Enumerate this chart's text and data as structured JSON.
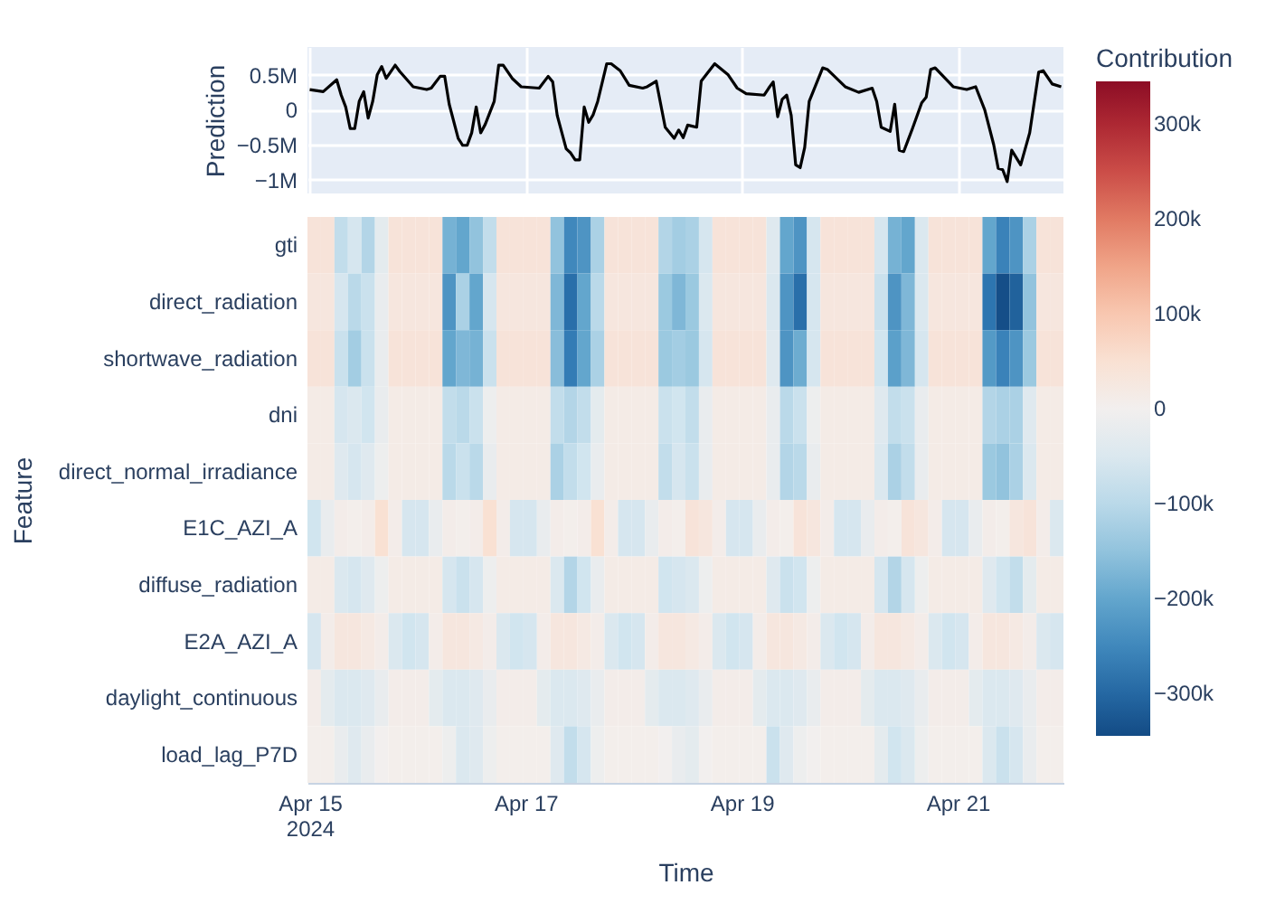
{
  "chart_data": [
    {
      "type": "line",
      "ylabel": "Prediction",
      "tick_labels": "y",
      "grid": true,
      "xlim": [
        "2024-04-14T23:30",
        "2024-04-21T23:30"
      ],
      "xticks": [
        {
          "value": "2024-04-15",
          "label": null
        },
        {
          "value": "2024-04-17",
          "label": null
        },
        {
          "value": "2024-04-19",
          "label": null
        },
        {
          "value": "2024-04-21",
          "label": null
        }
      ],
      "ylim": [
        -1200000,
        900000
      ],
      "yticks": [
        {
          "value": 500000,
          "label": "0.5M"
        },
        {
          "value": 0,
          "label": "0"
        },
        {
          "value": -500000,
          "label": "−0.5M"
        },
        {
          "value": -1000000,
          "label": "−1M"
        }
      ],
      "x": [
        "2024-04-15T00:00",
        "2024-04-15T03:00",
        "2024-04-15T06:00",
        "2024-04-15T07:00",
        "2024-04-15T08:00",
        "2024-04-15T09:00",
        "2024-04-15T10:00",
        "2024-04-15T11:00",
        "2024-04-15T12:00",
        "2024-04-15T13:00",
        "2024-04-15T14:00",
        "2024-04-15T15:00",
        "2024-04-15T16:00",
        "2024-04-15T17:00",
        "2024-04-15T19:00",
        "2024-04-15T20:00",
        "2024-04-15T23:00",
        "2024-04-16T02:00",
        "2024-04-16T03:00",
        "2024-04-16T05:00",
        "2024-04-16T06:00",
        "2024-04-16T07:00",
        "2024-04-16T09:00",
        "2024-04-16T10:00",
        "2024-04-16T11:00",
        "2024-04-16T12:00",
        "2024-04-16T13:00",
        "2024-04-16T14:00",
        "2024-04-16T15:00",
        "2024-04-16T17:00",
        "2024-04-16T18:00",
        "2024-04-16T19:00",
        "2024-04-16T21:00",
        "2024-04-16T23:00",
        "2024-04-17T03:00",
        "2024-04-17T05:00",
        "2024-04-17T06:00",
        "2024-04-17T07:00",
        "2024-04-17T09:00",
        "2024-04-17T10:00",
        "2024-04-17T11:00",
        "2024-04-17T12:00",
        "2024-04-17T13:00",
        "2024-04-17T14:00",
        "2024-04-17T15:00",
        "2024-04-17T16:00",
        "2024-04-17T18:00",
        "2024-04-17T19:00",
        "2024-04-17T21:00",
        "2024-04-17T23:00",
        "2024-04-18T02:00",
        "2024-04-18T03:00",
        "2024-04-18T05:00",
        "2024-04-18T07:00",
        "2024-04-18T09:00",
        "2024-04-18T10:00",
        "2024-04-18T11:00",
        "2024-04-18T12:00",
        "2024-04-18T14:00",
        "2024-04-18T15:00",
        "2024-04-18T18:00",
        "2024-04-18T21:00",
        "2024-04-18T23:00",
        "2024-04-19T01:00",
        "2024-04-19T05:00",
        "2024-04-19T06:00",
        "2024-04-19T07:00",
        "2024-04-19T08:00",
        "2024-04-19T09:00",
        "2024-04-19T10:00",
        "2024-04-19T11:00",
        "2024-04-19T12:00",
        "2024-04-19T13:00",
        "2024-04-19T14:00",
        "2024-04-19T15:00",
        "2024-04-19T18:00",
        "2024-04-19T19:00",
        "2024-04-19T23:00",
        "2024-04-20T02:00",
        "2024-04-20T05:00",
        "2024-04-20T06:00",
        "2024-04-20T07:00",
        "2024-04-20T09:00",
        "2024-04-20T10:00",
        "2024-04-20T11:00",
        "2024-04-20T12:00",
        "2024-04-20T13:00",
        "2024-04-20T14:00",
        "2024-04-20T16:00",
        "2024-04-20T17:00",
        "2024-04-20T18:00",
        "2024-04-20T19:00",
        "2024-04-20T23:00",
        "2024-04-21T02:00",
        "2024-04-21T04:00",
        "2024-04-21T06:00",
        "2024-04-21T08:00",
        "2024-04-21T09:00",
        "2024-04-21T10:00",
        "2024-04-21T11:00",
        "2024-04-21T12:00",
        "2024-04-21T14:00",
        "2024-04-21T16:00",
        "2024-04-21T18:00",
        "2024-04-21T19:00",
        "2024-04-21T21:00",
        "2024-04-21T23:00"
      ],
      "series": [
        {
          "color": "#000000",
          "values": [
            290000,
            260000,
            430000,
            210000,
            40000,
            -270000,
            -270000,
            120000,
            260000,
            -120000,
            120000,
            500000,
            620000,
            450000,
            640000,
            550000,
            330000,
            290000,
            310000,
            480000,
            480000,
            80000,
            -410000,
            -510000,
            -510000,
            -330000,
            40000,
            -330000,
            -210000,
            120000,
            640000,
            640000,
            450000,
            330000,
            310000,
            480000,
            400000,
            -80000,
            -560000,
            -620000,
            -720000,
            -720000,
            40000,
            -180000,
            -70000,
            120000,
            660000,
            660000,
            560000,
            350000,
            310000,
            330000,
            410000,
            -250000,
            -410000,
            -290000,
            -400000,
            -220000,
            -250000,
            410000,
            660000,
            500000,
            310000,
            230000,
            210000,
            310000,
            400000,
            -100000,
            150000,
            210000,
            -80000,
            -790000,
            -830000,
            -540000,
            120000,
            600000,
            580000,
            330000,
            250000,
            310000,
            120000,
            -250000,
            -310000,
            80000,
            -580000,
            -600000,
            -430000,
            -260000,
            100000,
            180000,
            580000,
            600000,
            330000,
            290000,
            330000,
            0,
            -500000,
            -840000,
            -860000,
            -1030000,
            -580000,
            -790000,
            -330000,
            540000,
            560000,
            370000,
            330000
          ]
        }
      ]
    },
    {
      "type": "heatmap",
      "xlabel": "Time",
      "ylabel": "Feature",
      "clabel": "Contribution",
      "xlim": [
        "2024-04-14T23:30",
        "2024-04-21T23:30"
      ],
      "xticks": [
        {
          "value": "2024-04-15",
          "label": "Apr 15\n2024"
        },
        {
          "value": "2024-04-17",
          "label": "Apr 17"
        },
        {
          "value": "2024-04-19",
          "label": "Apr 19"
        },
        {
          "value": "2024-04-21",
          "label": "Apr 21"
        }
      ],
      "clim": [
        -345000,
        345000
      ],
      "cticks": [
        {
          "value": 300000,
          "label": "300k"
        },
        {
          "value": 200000,
          "label": "200k"
        },
        {
          "value": 100000,
          "label": "100k"
        },
        {
          "value": 0,
          "label": "0"
        },
        {
          "value": -100000,
          "label": "−100k"
        },
        {
          "value": -200000,
          "label": "−200k"
        },
        {
          "value": -300000,
          "label": "−300k"
        }
      ],
      "x": [
        "2024-04-15T01:00",
        "2024-04-15T04:00",
        "2024-04-15T07:00",
        "2024-04-15T10:00",
        "2024-04-15T13:00",
        "2024-04-15T16:00",
        "2024-04-15T19:00",
        "2024-04-15T22:00",
        "2024-04-16T01:00",
        "2024-04-16T04:00",
        "2024-04-16T07:00",
        "2024-04-16T10:00",
        "2024-04-16T13:00",
        "2024-04-16T16:00",
        "2024-04-16T19:00",
        "2024-04-16T22:00",
        "2024-04-17T01:00",
        "2024-04-17T04:00",
        "2024-04-17T07:00",
        "2024-04-17T10:00",
        "2024-04-17T13:00",
        "2024-04-17T16:00",
        "2024-04-17T19:00",
        "2024-04-17T22:00",
        "2024-04-18T01:00",
        "2024-04-18T04:00",
        "2024-04-18T07:00",
        "2024-04-18T10:00",
        "2024-04-18T13:00",
        "2024-04-18T16:00",
        "2024-04-18T19:00",
        "2024-04-18T22:00",
        "2024-04-19T01:00",
        "2024-04-19T04:00",
        "2024-04-19T07:00",
        "2024-04-19T10:00",
        "2024-04-19T13:00",
        "2024-04-19T16:00",
        "2024-04-19T19:00",
        "2024-04-19T22:00",
        "2024-04-20T01:00",
        "2024-04-20T04:00",
        "2024-04-20T07:00",
        "2024-04-20T10:00",
        "2024-04-20T13:00",
        "2024-04-20T16:00",
        "2024-04-20T19:00",
        "2024-04-20T22:00",
        "2024-04-21T01:00",
        "2024-04-21T04:00",
        "2024-04-21T07:00",
        "2024-04-21T10:00",
        "2024-04-21T13:00",
        "2024-04-21T16:00",
        "2024-04-21T19:00",
        "2024-04-21T22:00"
      ],
      "y_categories": [
        "gti",
        "direct_radiation",
        "shortwave_radiation",
        "dni",
        "direct_normal_irradiance",
        "E1C_AZI_A",
        "diffuse_radiation",
        "E2A_AZI_A",
        "daylight_continuous",
        "load_lag_P7D"
      ],
      "cells": [
        [
          40000,
          40000,
          -90000,
          -60000,
          -110000,
          -30000,
          40000,
          40000,
          40000,
          40000,
          -180000,
          -200000,
          -150000,
          -90000,
          40000,
          40000,
          40000,
          40000,
          -150000,
          -250000,
          -230000,
          -120000,
          40000,
          40000,
          40000,
          40000,
          -110000,
          -130000,
          -120000,
          -60000,
          40000,
          40000,
          40000,
          40000,
          -40000,
          -200000,
          -230000,
          -60000,
          40000,
          40000,
          40000,
          40000,
          -60000,
          -180000,
          -200000,
          -50000,
          40000,
          40000,
          40000,
          40000,
          -200000,
          -260000,
          -230000,
          -120000,
          40000,
          40000
        ],
        [
          30000,
          30000,
          -60000,
          -100000,
          -80000,
          -20000,
          30000,
          30000,
          30000,
          30000,
          -230000,
          -120000,
          -200000,
          -60000,
          30000,
          30000,
          30000,
          30000,
          -170000,
          -290000,
          -200000,
          -100000,
          30000,
          30000,
          30000,
          30000,
          -140000,
          -170000,
          -140000,
          -50000,
          30000,
          30000,
          30000,
          30000,
          -50000,
          -230000,
          -290000,
          -60000,
          30000,
          30000,
          30000,
          30000,
          -80000,
          -230000,
          -170000,
          -50000,
          30000,
          30000,
          30000,
          30000,
          -280000,
          -340000,
          -310000,
          -150000,
          30000,
          30000
        ],
        [
          40000,
          40000,
          -80000,
          -130000,
          -80000,
          -20000,
          40000,
          40000,
          40000,
          40000,
          -200000,
          -170000,
          -180000,
          -80000,
          40000,
          40000,
          40000,
          40000,
          -160000,
          -270000,
          -200000,
          -120000,
          40000,
          40000,
          40000,
          40000,
          -140000,
          -130000,
          -140000,
          -60000,
          40000,
          40000,
          40000,
          40000,
          -40000,
          -230000,
          -190000,
          -60000,
          40000,
          40000,
          40000,
          40000,
          -70000,
          -210000,
          -170000,
          -60000,
          40000,
          40000,
          40000,
          40000,
          -220000,
          -260000,
          -230000,
          -140000,
          40000,
          40000
        ],
        [
          15000,
          15000,
          -60000,
          -50000,
          -70000,
          -20000,
          15000,
          15000,
          15000,
          15000,
          -90000,
          -100000,
          -80000,
          -10000,
          15000,
          15000,
          15000,
          15000,
          -90000,
          -110000,
          -90000,
          -30000,
          15000,
          15000,
          15000,
          15000,
          -80000,
          -70000,
          -90000,
          -20000,
          15000,
          15000,
          15000,
          15000,
          -20000,
          -100000,
          -80000,
          -10000,
          15000,
          15000,
          15000,
          15000,
          -40000,
          -90000,
          -80000,
          -20000,
          15000,
          15000,
          15000,
          15000,
          -110000,
          -120000,
          -120000,
          -40000,
          15000,
          15000
        ],
        [
          15000,
          15000,
          -40000,
          -60000,
          -40000,
          -10000,
          15000,
          15000,
          15000,
          15000,
          -100000,
          -80000,
          -100000,
          -20000,
          15000,
          15000,
          15000,
          15000,
          -120000,
          -90000,
          -70000,
          -20000,
          15000,
          15000,
          15000,
          15000,
          -90000,
          -60000,
          -80000,
          -20000,
          15000,
          15000,
          15000,
          15000,
          -20000,
          -110000,
          -100000,
          -20000,
          15000,
          15000,
          15000,
          15000,
          -50000,
          -120000,
          -90000,
          -20000,
          15000,
          15000,
          15000,
          15000,
          -140000,
          -150000,
          -120000,
          -50000,
          15000,
          15000
        ],
        [
          -70000,
          -20000,
          10000,
          5000,
          10000,
          50000,
          10000,
          -60000,
          -60000,
          -20000,
          10000,
          5000,
          10000,
          50000,
          10000,
          -60000,
          -60000,
          -20000,
          10000,
          5000,
          10000,
          50000,
          10000,
          -60000,
          -60000,
          -20000,
          10000,
          5000,
          40000,
          30000,
          10000,
          -60000,
          -60000,
          -20000,
          10000,
          5000,
          40000,
          30000,
          10000,
          -60000,
          -60000,
          -20000,
          10000,
          5000,
          40000,
          30000,
          10000,
          -60000,
          -60000,
          -20000,
          10000,
          5000,
          30000,
          40000,
          10000,
          -50000
        ],
        [
          15000,
          15000,
          -50000,
          -60000,
          -40000,
          -10000,
          15000,
          15000,
          15000,
          15000,
          -60000,
          -80000,
          -60000,
          -10000,
          15000,
          15000,
          15000,
          15000,
          -50000,
          -110000,
          -70000,
          -20000,
          15000,
          15000,
          15000,
          15000,
          -70000,
          -60000,
          -50000,
          -10000,
          15000,
          15000,
          15000,
          15000,
          -40000,
          -80000,
          -70000,
          -10000,
          15000,
          15000,
          15000,
          15000,
          -60000,
          -110000,
          -60000,
          -10000,
          15000,
          15000,
          15000,
          15000,
          -40000,
          -70000,
          -90000,
          -30000,
          15000,
          15000
        ],
        [
          -60000,
          10000,
          30000,
          30000,
          20000,
          10000,
          -50000,
          -70000,
          -60000,
          10000,
          30000,
          30000,
          20000,
          10000,
          -50000,
          -70000,
          -60000,
          10000,
          30000,
          30000,
          20000,
          10000,
          -50000,
          -70000,
          -60000,
          10000,
          30000,
          30000,
          20000,
          10000,
          -50000,
          -70000,
          -60000,
          10000,
          30000,
          30000,
          20000,
          10000,
          -50000,
          -70000,
          -60000,
          10000,
          30000,
          30000,
          20000,
          10000,
          -50000,
          -70000,
          -60000,
          10000,
          30000,
          30000,
          20000,
          10000,
          -50000,
          -60000
        ],
        [
          10000,
          -30000,
          -50000,
          -50000,
          -40000,
          -20000,
          10000,
          10000,
          10000,
          -30000,
          -50000,
          -50000,
          -40000,
          -20000,
          10000,
          10000,
          10000,
          -30000,
          -50000,
          -50000,
          -40000,
          -20000,
          10000,
          10000,
          10000,
          -30000,
          -50000,
          -50000,
          -40000,
          -20000,
          10000,
          10000,
          10000,
          -30000,
          -50000,
          -50000,
          -40000,
          -20000,
          10000,
          10000,
          10000,
          -30000,
          -50000,
          -50000,
          -40000,
          -20000,
          10000,
          10000,
          10000,
          -30000,
          -50000,
          -50000,
          -40000,
          -20000,
          10000,
          10000
        ],
        [
          5000,
          5000,
          -20000,
          -40000,
          -20000,
          0,
          5000,
          5000,
          5000,
          5000,
          -10000,
          -50000,
          -40000,
          -10000,
          5000,
          5000,
          5000,
          5000,
          -40000,
          -90000,
          -60000,
          -10000,
          5000,
          5000,
          5000,
          5000,
          0,
          -20000,
          -30000,
          0,
          5000,
          5000,
          5000,
          5000,
          -80000,
          -40000,
          -10000,
          0,
          5000,
          5000,
          5000,
          5000,
          -30000,
          -70000,
          -50000,
          -10000,
          5000,
          5000,
          5000,
          5000,
          -50000,
          -80000,
          -60000,
          -20000,
          5000,
          5000
        ]
      ]
    }
  ]
}
